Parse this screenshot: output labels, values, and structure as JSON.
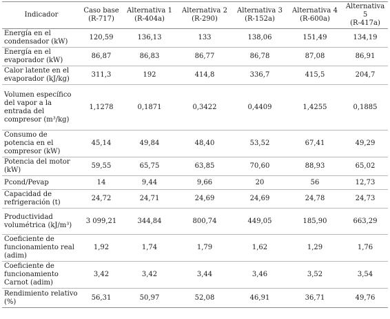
{
  "table": {
    "headers": [
      {
        "line1": "Indicador",
        "line2": ""
      },
      {
        "line1": "Caso base",
        "line2": "(R-717)"
      },
      {
        "line1": "Alternativa 1",
        "line2": "(R-404a)"
      },
      {
        "line1": "Alternativa 2",
        "line2": "(R-290)"
      },
      {
        "line1": "Alternativa 3",
        "line2": "(R-152a)"
      },
      {
        "line1": "Alternativa 4",
        "line2": "(R-600a)"
      },
      {
        "line1": "Alternativa 5",
        "line2": "(R-417a)"
      }
    ],
    "rows": [
      {
        "label": "Energía en el condensador (kW)",
        "values": [
          "120,59",
          "136,13",
          "133",
          "138,06",
          "151,49",
          "134,19"
        ]
      },
      {
        "label": "Energía en el evaporador (kW)",
        "values": [
          "86,87",
          "86,83",
          "86,77",
          "86,78",
          "87,08",
          "86,91"
        ]
      },
      {
        "label": "Calor latente en el evaporador (kJ/kg)",
        "values": [
          "311,3",
          "192",
          "414,8",
          "336,7",
          "415,5",
          "204,7"
        ]
      },
      {
        "label": "Volumen específico del vapor a la entrada del compresor (m³/kg)",
        "values": [
          "1,1278",
          "0,1871",
          "0,3422",
          "0,4409",
          "1,4255",
          "0,1885"
        ]
      },
      {
        "label": "Consumo de potencia en el compresor (kW)",
        "values": [
          "45,14",
          "49,84",
          "48,40",
          "53,52",
          "67,41",
          "49,29"
        ]
      },
      {
        "label": "Potencia del motor (kW)",
        "values": [
          "59,55",
          "65,75",
          "63,85",
          "70,60",
          "88,93",
          "65,02"
        ]
      },
      {
        "label": "Pcond/Pevap",
        "values": [
          "14",
          "9,44",
          "9,66",
          "20",
          "56",
          "12,73"
        ]
      },
      {
        "label": "Capacidad de refrigeración (t)",
        "values": [
          "24,72",
          "24,71",
          "24,69",
          "24,69",
          "24,78",
          "24,73"
        ]
      },
      {
        "label": "Productividad volumétrica (kJ/m³)",
        "values": [
          "3 099,21",
          "344,84",
          "800,74",
          "449,05",
          "185,90",
          "663,29"
        ]
      },
      {
        "label": "Coeficiente de funcionamiento real (adim)",
        "values": [
          "1,92",
          "1,74",
          "1,79",
          "1,62",
          "1,29",
          "1,76"
        ]
      },
      {
        "label": "Coeficiente de funcionamiento Carnot (adim)",
        "values": [
          "3,42",
          "3,42",
          "3,44",
          "3,46",
          "3,52",
          "3,54"
        ]
      },
      {
        "label": "Rendimiento relativo (%)",
        "values": [
          "56,31",
          "50,97",
          "52,08",
          "46,91",
          "36,71",
          "49,76"
        ]
      }
    ]
  }
}
